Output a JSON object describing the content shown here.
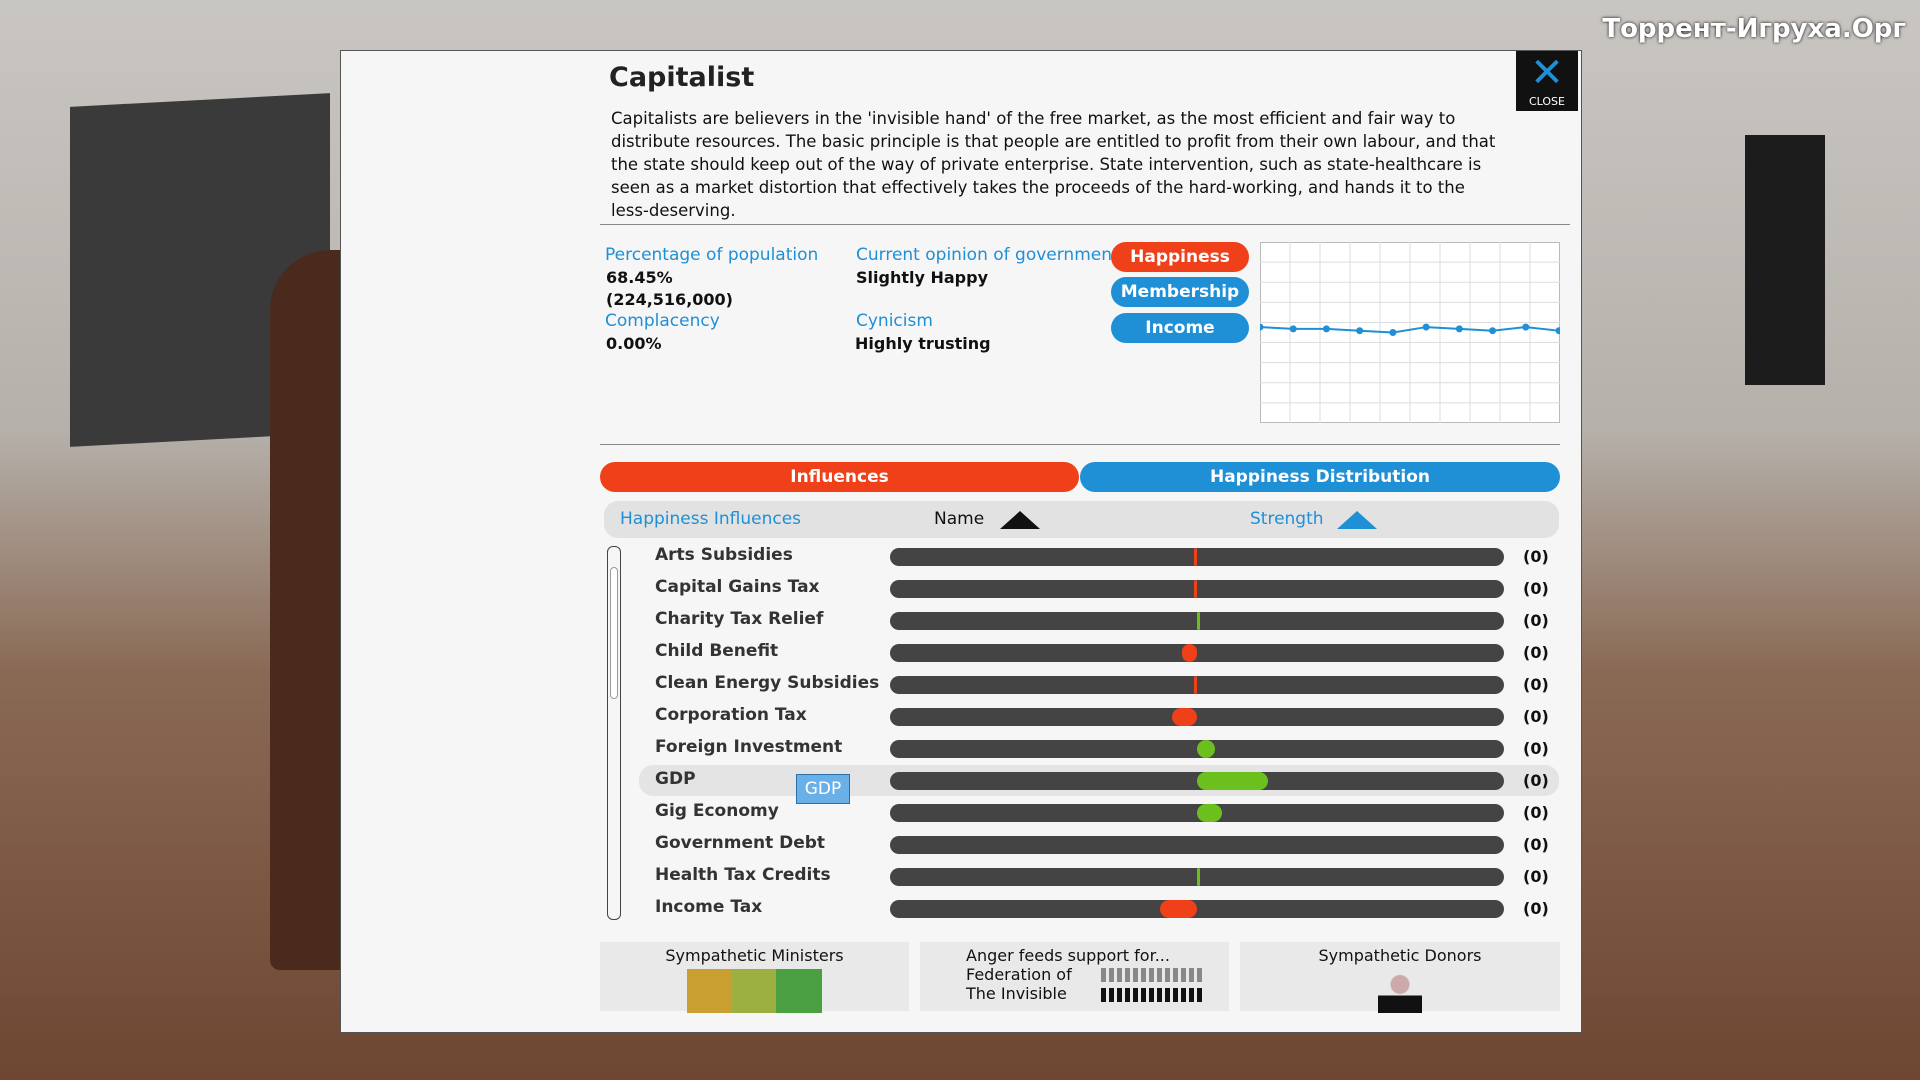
{
  "watermark": "Торрент-Игруха.Орг",
  "header": {
    "title": "Capitalist",
    "close": "CLOSE",
    "description": "Capitalists are believers in the 'invisible hand' of the free market, as the most efficient and fair way to distribute resources. The basic principle is that people are entitled to profit from their own labour, and that the state should keep out of the way of private enterprise. State intervention, such as state-healthcare is seen as a market distortion that effectively takes the proceeds of the hard-working, and hands it to the less-deserving."
  },
  "stats": {
    "population_label": "Percentage of population",
    "population_percent": "68.45%",
    "population_count": "(224,516,000)",
    "complacency_label": "Complacency",
    "complacency": "0.00%",
    "opinion_label": "Current opinion of government",
    "opinion": "Slightly Happy",
    "cynicism_label": "Cynicism",
    "cynicism": "Highly trusting"
  },
  "chart_buttons": [
    "Happiness",
    "Membership",
    "Income"
  ],
  "chart_data": {
    "type": "line",
    "ylim": [
      0,
      1
    ],
    "series": [
      {
        "color": "#1f8fd6",
        "values": [
          0.53,
          0.52,
          0.52,
          0.51,
          0.5,
          0.53,
          0.52,
          0.51,
          0.53,
          0.51
        ]
      }
    ]
  },
  "tabs": [
    "Influences",
    "Happiness Distribution"
  ],
  "table": {
    "header": [
      "Happiness Influences",
      "Name",
      "Strength"
    ],
    "xlim": [
      -1,
      1
    ],
    "tooltip": "GDP",
    "rows": [
      {
        "name": "Arts Subsidies",
        "strength": -0.01,
        "label": "(0)"
      },
      {
        "name": "Capital Gains Tax",
        "strength": -0.01,
        "label": "(0)"
      },
      {
        "name": "Charity Tax Relief",
        "strength": 0.01,
        "label": "(0)"
      },
      {
        "name": "Child Benefit",
        "strength": -0.05,
        "label": "(0)"
      },
      {
        "name": "Clean Energy Subsidies",
        "strength": -0.01,
        "label": "(0)"
      },
      {
        "name": "Corporation Tax",
        "strength": -0.08,
        "label": "(0)"
      },
      {
        "name": "Foreign Investment",
        "strength": 0.06,
        "label": "(0)"
      },
      {
        "name": "GDP",
        "strength": 0.23,
        "label": "(0)"
      },
      {
        "name": "Gig Economy",
        "strength": 0.08,
        "label": "(0)"
      },
      {
        "name": "Government Debt",
        "strength": 0,
        "label": "(0)"
      },
      {
        "name": "Health Tax Credits",
        "strength": 0.01,
        "label": "(0)"
      },
      {
        "name": "Income Tax",
        "strength": -0.12,
        "label": "(0)"
      }
    ]
  },
  "bottom": {
    "ministers": "Sympathetic Ministers",
    "anger": "Anger feeds support for...",
    "group": [
      "Federation of",
      "The Invisible"
    ],
    "donors": "Sympathetic Donors"
  }
}
